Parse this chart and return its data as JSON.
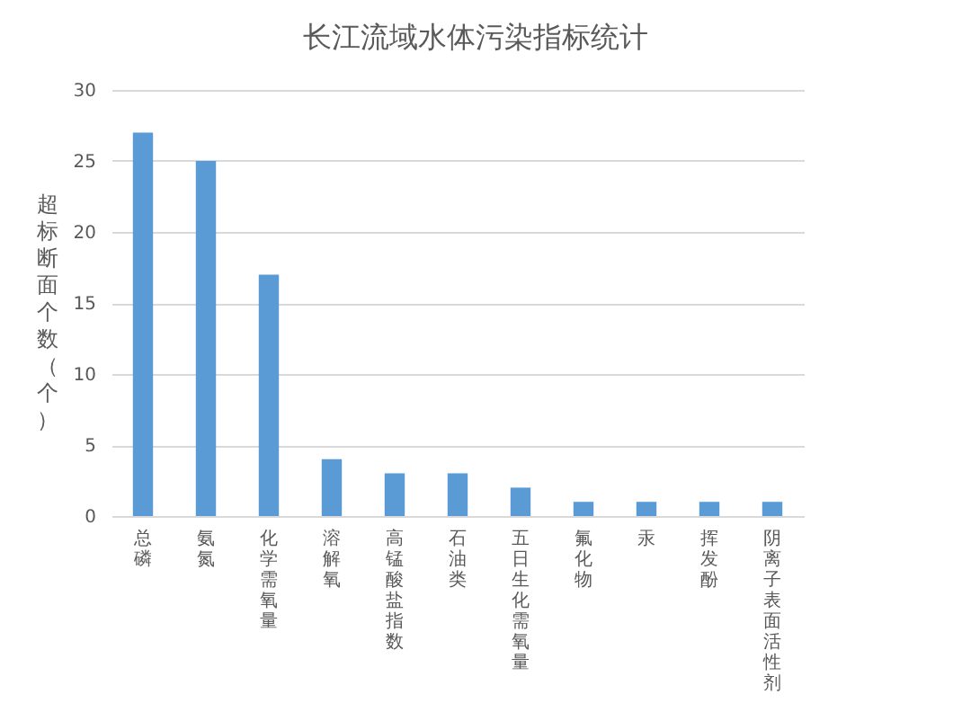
{
  "chart_data": {
    "type": "bar",
    "title": "长江流域水体污染指标统计",
    "ylabel": "超标断面个数（个）",
    "categories": [
      "总磷",
      "氨氮",
      "化学需氧量",
      "溶解氧",
      "高锰酸盐指数",
      "石油类",
      "五日生化需氧量",
      "氟化物",
      "汞",
      "挥发酚",
      "阴离子表面活性剂"
    ],
    "values": [
      27,
      25,
      17,
      4,
      3,
      3,
      2,
      1,
      1,
      1,
      1
    ],
    "color": "#5b9bd5",
    "ylim": [
      0,
      30
    ],
    "yticks": [
      0,
      5,
      10,
      15,
      20,
      25,
      30
    ],
    "grid": "y"
  }
}
